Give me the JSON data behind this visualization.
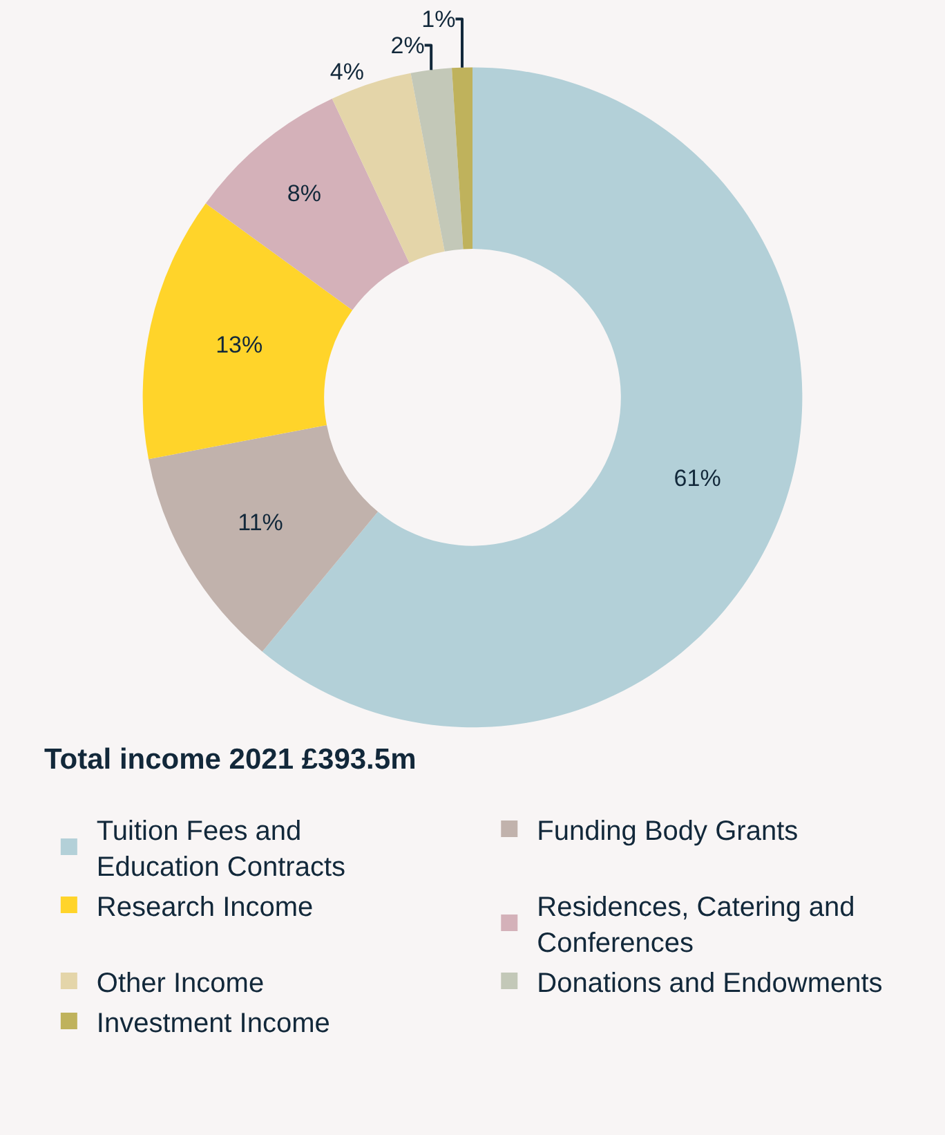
{
  "chart_data": {
    "type": "donut",
    "title": "Total income 2021 £393.5m",
    "categories": [
      "Tuition Fees and Education Contracts",
      "Funding Body Grants",
      "Research Income",
      "Residences, Catering and Conferences",
      "Other Income",
      "Donations and Endowments",
      "Investment Income"
    ],
    "values": [
      61,
      11,
      13,
      8,
      4,
      2,
      1
    ],
    "colors": [
      "#b3d0d8",
      "#c1b2ac",
      "#ffd42a",
      "#d4b1b9",
      "#e4d5a9",
      "#c3c8b8",
      "#bfb25c"
    ],
    "value_labels": [
      "61%",
      "11%",
      "13%",
      "8%",
      "4%",
      "2%",
      "1%"
    ],
    "legend": "bottom"
  }
}
